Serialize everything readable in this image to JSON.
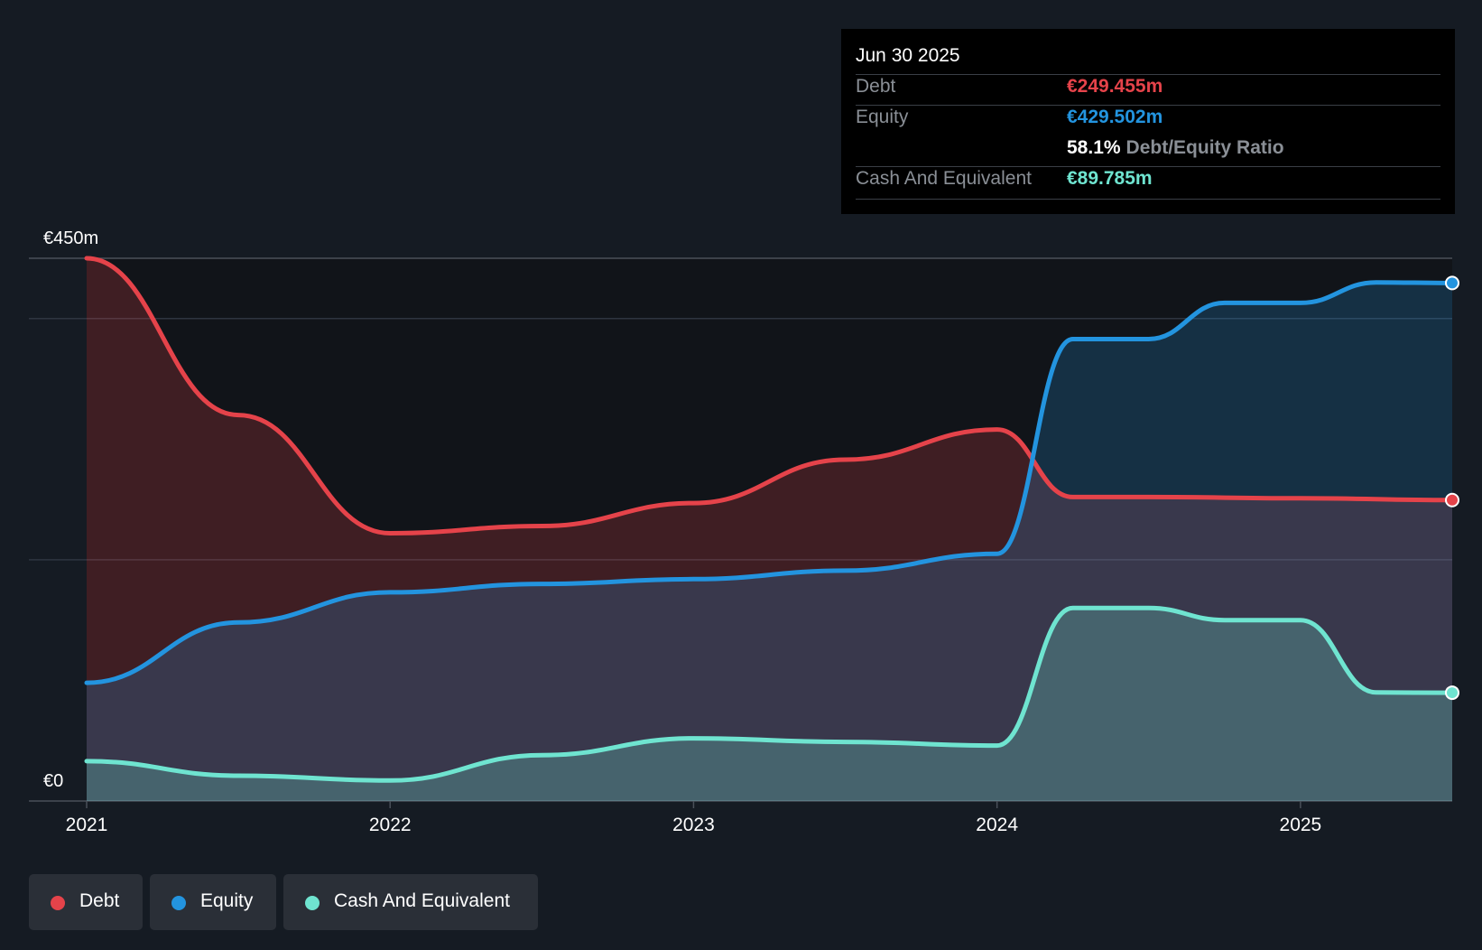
{
  "colors": {
    "background": "#151b23",
    "debt": "#e5434a",
    "equity": "#2394df",
    "cash": "#6fe4d0",
    "grid": "#2e3540",
    "text": "#ffffff",
    "muted": "#8a8f96"
  },
  "tooltip": {
    "date": "Jun 30 2025",
    "rows": {
      "debt": {
        "label": "Debt",
        "value": "€249.455m"
      },
      "equity": {
        "label": "Equity",
        "value": "€429.502m"
      },
      "ratio": {
        "value": "58.1%",
        "label": "Debt/Equity Ratio"
      },
      "cash": {
        "label": "Cash And Equivalent",
        "value": "€89.785m"
      }
    }
  },
  "legend": [
    {
      "label": "Debt",
      "color": "#e5434a"
    },
    {
      "label": "Equity",
      "color": "#2394df"
    },
    {
      "label": "Cash And Equivalent",
      "color": "#6fe4d0"
    }
  ],
  "chart_data": {
    "type": "area",
    "title": "",
    "xlabel": "",
    "ylabel": "",
    "ylim": [
      0,
      450
    ],
    "xlim": [
      2021.0,
      2025.5
    ],
    "y_tick_labels": [
      {
        "value": 450,
        "label": "€450m"
      },
      {
        "value": 0,
        "label": "€0"
      }
    ],
    "gridlines": [
      450,
      400,
      200
    ],
    "x_ticks": [
      {
        "value": 2021,
        "label": "2021"
      },
      {
        "value": 2022,
        "label": "2022"
      },
      {
        "value": 2023,
        "label": "2023"
      },
      {
        "value": 2024,
        "label": "2024"
      },
      {
        "value": 2025,
        "label": "2025"
      }
    ],
    "series": [
      {
        "name": "Debt",
        "key": "debt",
        "points": [
          [
            2021.0,
            450
          ],
          [
            2021.5,
            320
          ],
          [
            2022.0,
            222
          ],
          [
            2022.5,
            228
          ],
          [
            2023.0,
            247
          ],
          [
            2023.5,
            283
          ],
          [
            2024.0,
            308
          ],
          [
            2024.25,
            252
          ],
          [
            2024.5,
            252
          ],
          [
            2025.0,
            251
          ],
          [
            2025.5,
            249.5
          ]
        ]
      },
      {
        "name": "Equity",
        "key": "equity",
        "points": [
          [
            2021.0,
            98
          ],
          [
            2021.5,
            148
          ],
          [
            2022.0,
            173
          ],
          [
            2022.5,
            180
          ],
          [
            2023.0,
            184
          ],
          [
            2023.5,
            191
          ],
          [
            2024.0,
            205
          ],
          [
            2024.25,
            383
          ],
          [
            2024.5,
            383
          ],
          [
            2024.75,
            413
          ],
          [
            2025.0,
            413
          ],
          [
            2025.25,
            430
          ],
          [
            2025.5,
            429.5
          ]
        ]
      },
      {
        "name": "Cash And Equivalent",
        "key": "cash",
        "points": [
          [
            2021.0,
            33
          ],
          [
            2021.5,
            21
          ],
          [
            2022.0,
            17
          ],
          [
            2022.5,
            38
          ],
          [
            2023.0,
            52
          ],
          [
            2023.5,
            49
          ],
          [
            2024.0,
            46
          ],
          [
            2024.25,
            160
          ],
          [
            2024.5,
            160
          ],
          [
            2024.75,
            150
          ],
          [
            2025.0,
            150
          ],
          [
            2025.25,
            90
          ],
          [
            2025.5,
            89.8
          ]
        ]
      }
    ]
  }
}
